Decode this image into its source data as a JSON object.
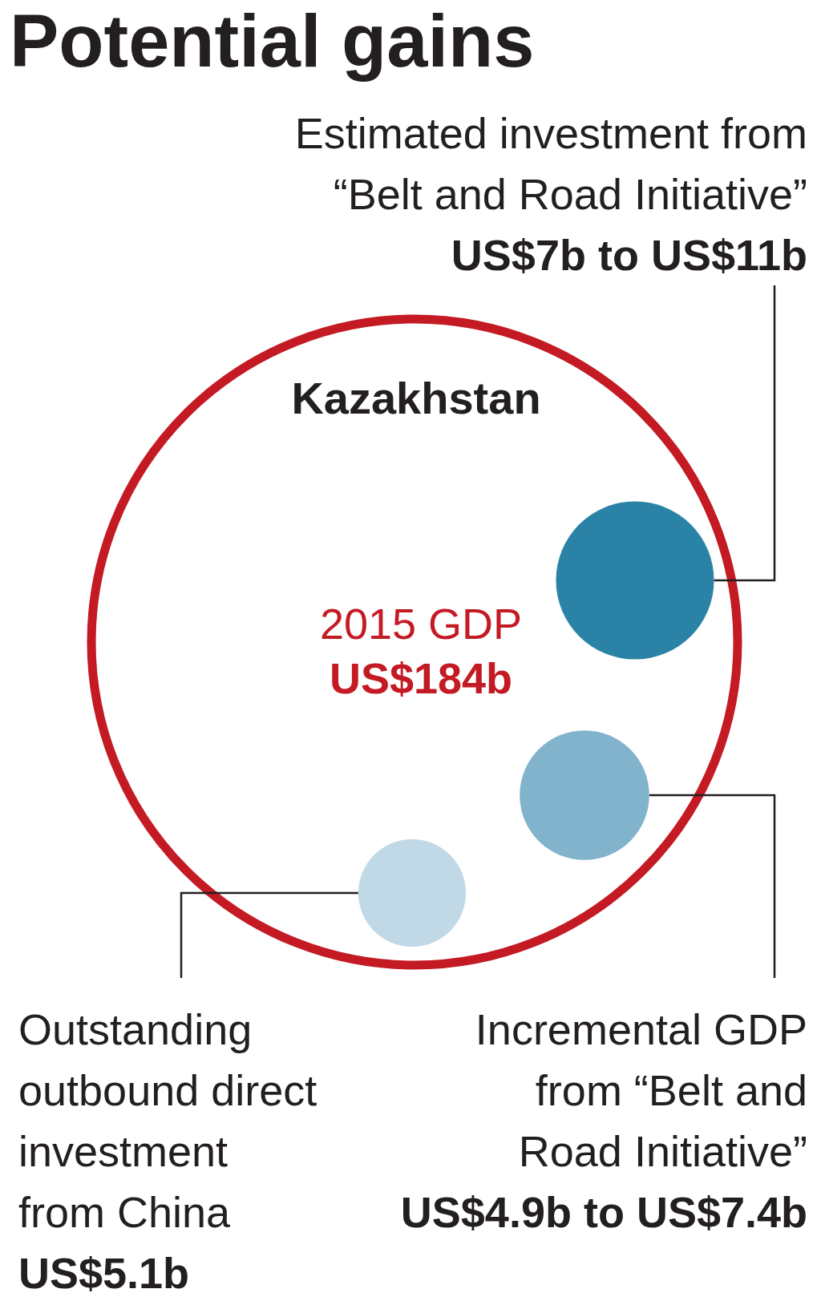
{
  "chart_data": {
    "type": "other",
    "title": "Potential gains",
    "categories": [
      "2015 GDP",
      "Estimated investment from “Belt and Road Initiative”",
      "Incremental GDP from “Belt and Road Initiative”",
      "Outstanding outbound direct investment from China"
    ],
    "values": [
      184000000000,
      11000000000,
      7400000000,
      5100000000
    ],
    "value_labels": [
      "US$184b",
      "US$7b to US$11b",
      "US$4.9b to US$7.4b",
      "US$5.1b"
    ],
    "colors": [
      "#c41a24",
      "#2a83a6",
      "#82b3cd",
      "#c1d9e6"
    ],
    "annotations": [
      "Kazakhstan"
    ]
  }
}
